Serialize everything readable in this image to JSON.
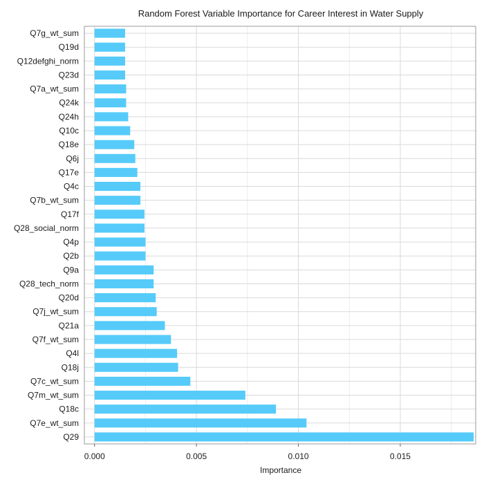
{
  "chart_data": {
    "type": "bar",
    "orientation": "horizontal",
    "title": "Random Forest Variable Importance for Career Interest in Water Supply",
    "xlabel": "Importance",
    "ylabel": "",
    "xlim": [
      -0.0005,
      0.0187
    ],
    "xticks": [
      "0.000",
      "0.005",
      "0.010",
      "0.015"
    ],
    "xtick_values": [
      0,
      0.005,
      0.01,
      0.015
    ],
    "grid": true,
    "bar_color": "#56cbf9",
    "categories": [
      "Q7g_wt_sum",
      "Q19d",
      "Q12defghi_norm",
      "Q23d",
      "Q7a_wt_sum",
      "Q24k",
      "Q24h",
      "Q10c",
      "Q18e",
      "Q6j",
      "Q17e",
      "Q4c",
      "Q7b_wt_sum",
      "Q17f",
      "Q28_social_norm",
      "Q4p",
      "Q2b",
      "Q9a",
      "Q28_tech_norm",
      "Q20d",
      "Q7j_wt_sum",
      "Q21a",
      "Q7f_wt_sum",
      "Q4l",
      "Q18j",
      "Q7c_wt_sum",
      "Q7m_wt_sum",
      "Q18c",
      "Q7e_wt_sum",
      "Q29"
    ],
    "values": [
      0.0015,
      0.0015,
      0.0015,
      0.0015,
      0.00155,
      0.00155,
      0.00165,
      0.00175,
      0.00195,
      0.002,
      0.0021,
      0.00225,
      0.00225,
      0.00245,
      0.00245,
      0.0025,
      0.0025,
      0.0029,
      0.0029,
      0.003,
      0.00305,
      0.00345,
      0.00375,
      0.00405,
      0.0041,
      0.0047,
      0.0074,
      0.0089,
      0.0104,
      0.0186
    ]
  }
}
